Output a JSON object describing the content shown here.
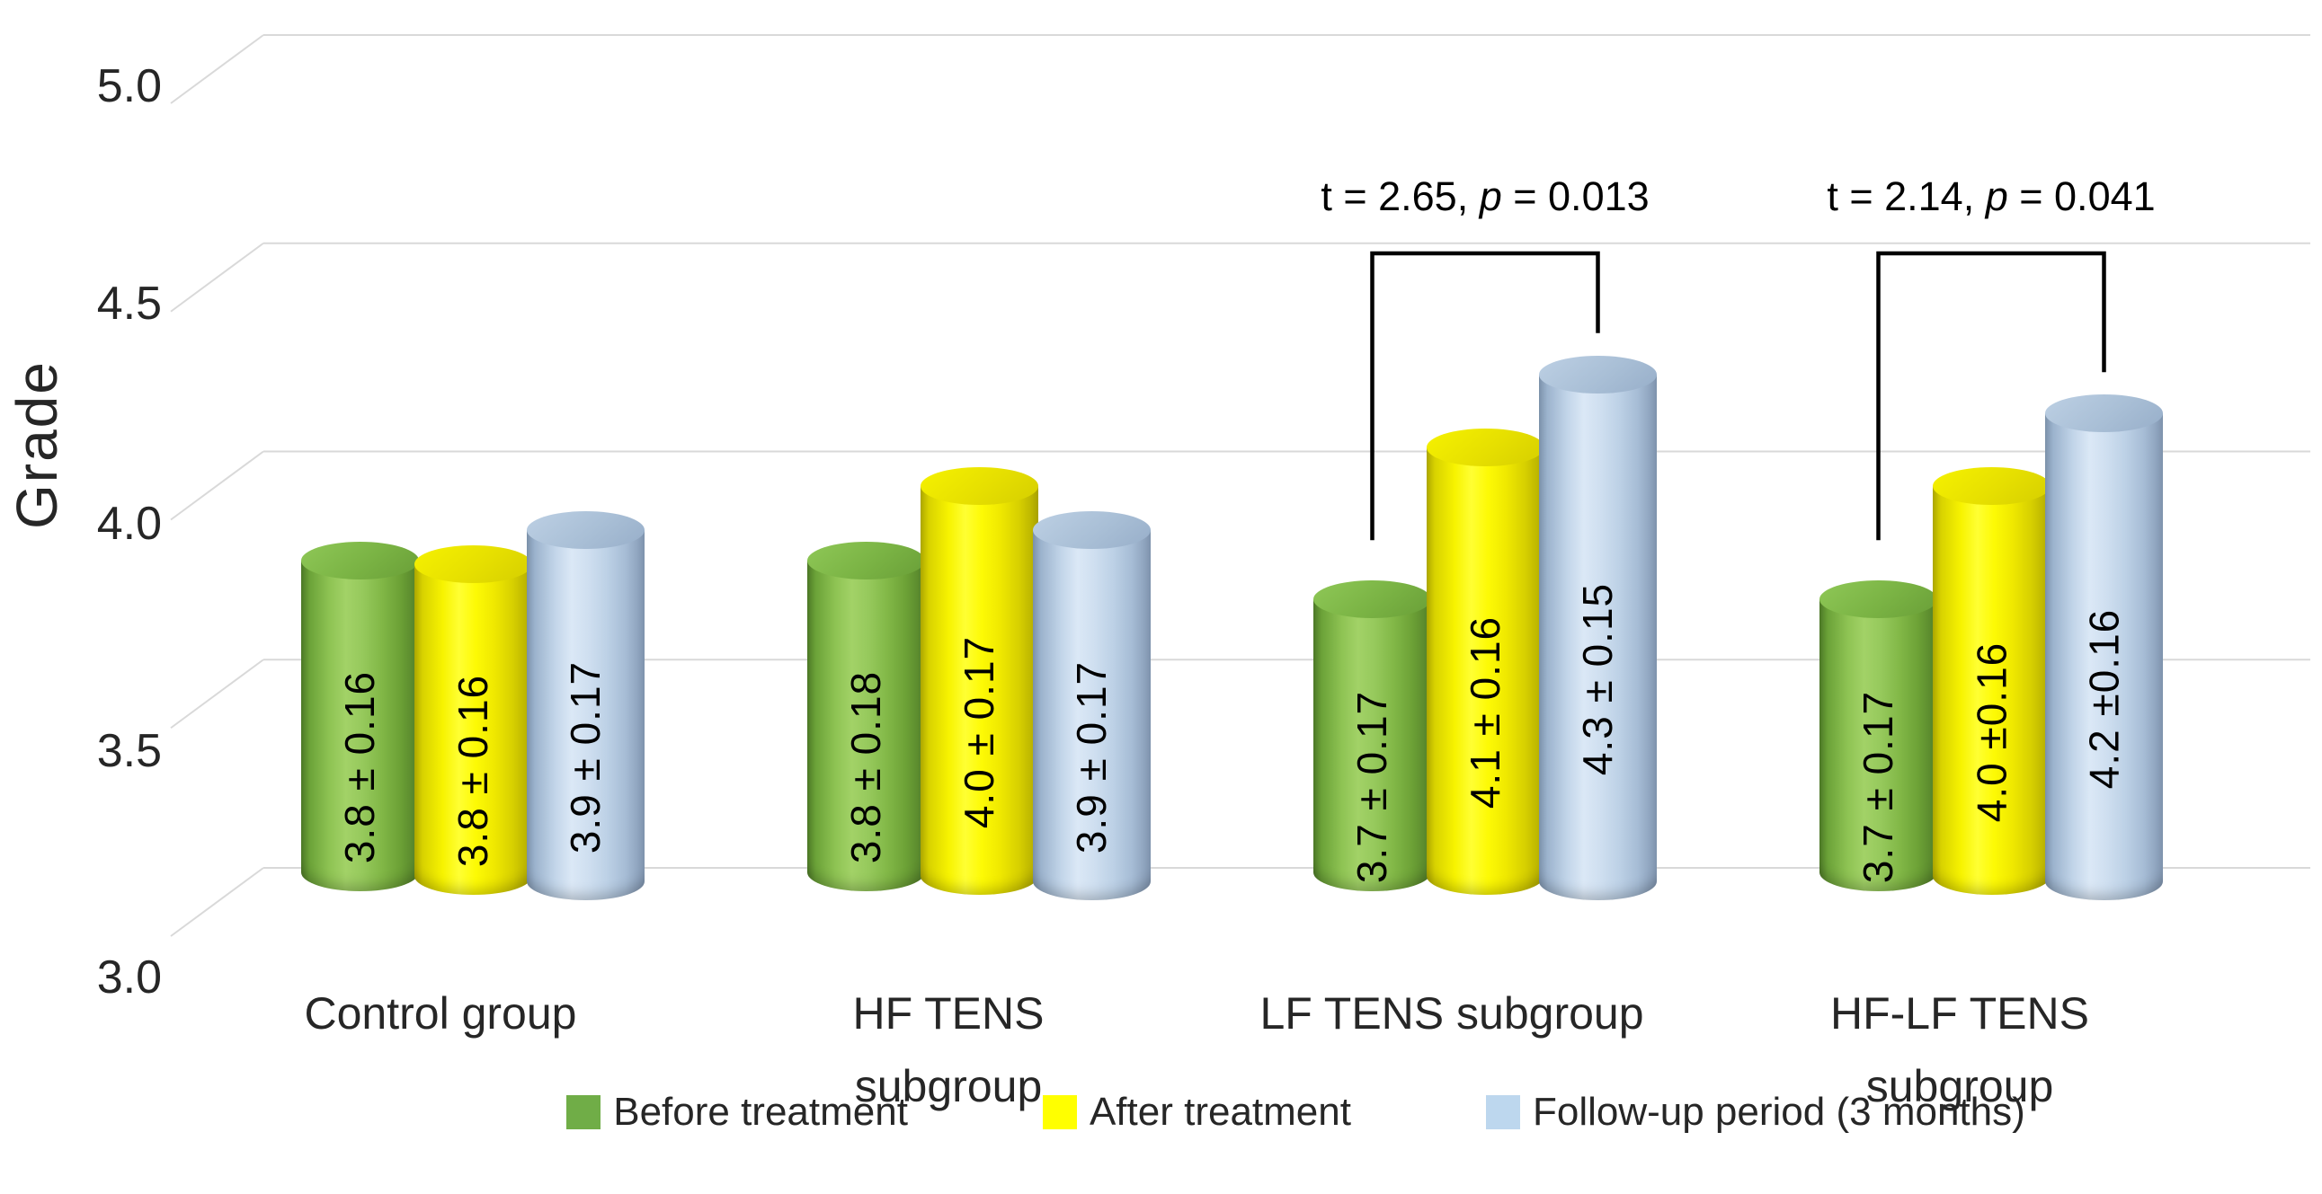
{
  "chart_data": {
    "type": "bar",
    "variant": "3d-cylinder",
    "title": "",
    "ylabel": "Grade",
    "xlabel": "",
    "ylim": [
      3.0,
      5.0
    ],
    "ytick_labels": [
      "5.0",
      "4.5",
      "4.0",
      "3.5",
      "3.0"
    ],
    "ytick_values": [
      5.0,
      4.5,
      4.0,
      3.5,
      3.0
    ],
    "grid": true,
    "gridline_color": "#d9d9d9",
    "legend_position": "bottom",
    "categories": [
      "Control group",
      "HF TENS subgroup",
      "LF TENS subgroup",
      "HF-LF TENS subgroup"
    ],
    "series": [
      {
        "name": "Before treatment",
        "color": "#70ad47",
        "values": [
          3.8,
          3.8,
          3.7,
          3.7
        ],
        "labels": [
          "3.8 ± 0.16",
          "3.8 ± 0.18",
          "3.7 ± 0.17",
          "3.7 ± 0.17"
        ]
      },
      {
        "name": "After treatment",
        "color": "#ffff00",
        "values": [
          3.8,
          4.0,
          4.1,
          4.0
        ],
        "labels": [
          "3.8 ± 0.16",
          "4.0 ± 0.17",
          "4.1 ± 0.16",
          "4.0 ±0.16"
        ]
      },
      {
        "name": "Follow-up period (3 months)",
        "color": "#bdd7ee",
        "values": [
          3.9,
          3.9,
          4.3,
          4.2
        ],
        "labels": [
          "3.9 ± 0.17",
          "3.9 ± 0.17",
          "4.3 ± 0.15",
          "4.2 ±0.16"
        ]
      }
    ],
    "annotations": [
      {
        "prefix": "t = 2.65, ",
        "p_label": "p",
        "suffix": " = 0.013",
        "group": 2,
        "from_series": 0,
        "to_series": 2
      },
      {
        "prefix": "t = 2.14, ",
        "p_label": "p",
        "suffix": " = 0.041",
        "group": 3,
        "from_series": 0,
        "to_series": 2
      }
    ]
  }
}
